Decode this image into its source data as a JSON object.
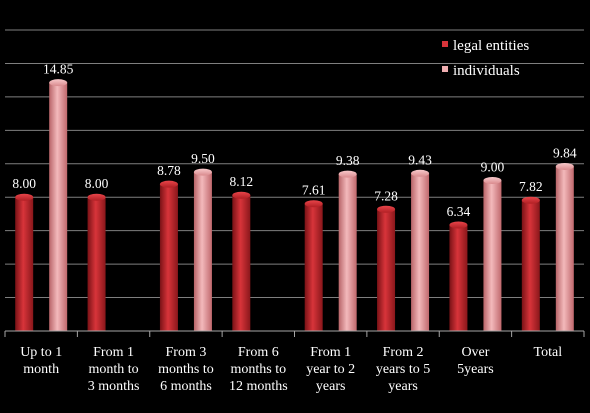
{
  "chart_data": {
    "type": "bar",
    "title": "",
    "xlabel": "",
    "ylabel": "",
    "ylim": [
      0,
      18
    ],
    "grid": true,
    "legend_position": "top-right",
    "categories": [
      [
        "Up to 1",
        "month"
      ],
      [
        "From 1",
        "month to",
        "3 months"
      ],
      [
        "From 3",
        "months to",
        "6 months"
      ],
      [
        "From 6",
        "months to",
        "12 months"
      ],
      [
        "From 1",
        "year to 2",
        "years"
      ],
      [
        "From 2",
        "years to 5",
        "years"
      ],
      [
        "Over",
        "5years"
      ],
      [
        "Total"
      ]
    ],
    "series": [
      {
        "name": "legal entities",
        "color": "#c0262b",
        "values": [
          8.0,
          8.0,
          8.78,
          8.12,
          7.61,
          7.28,
          6.34,
          7.82
        ],
        "labels": [
          "8.00",
          "8.00",
          "8.78",
          "8.12",
          "7.61",
          "7.28",
          "6.34",
          "7.82"
        ]
      },
      {
        "name": "individuals",
        "color": "#e5989b",
        "values": [
          14.85,
          null,
          9.5,
          null,
          9.38,
          9.43,
          9.0,
          9.84
        ],
        "labels": [
          "14.85",
          "",
          "9.50",
          "",
          "9.38",
          "9.43",
          "9.00",
          "9.84"
        ]
      }
    ]
  }
}
